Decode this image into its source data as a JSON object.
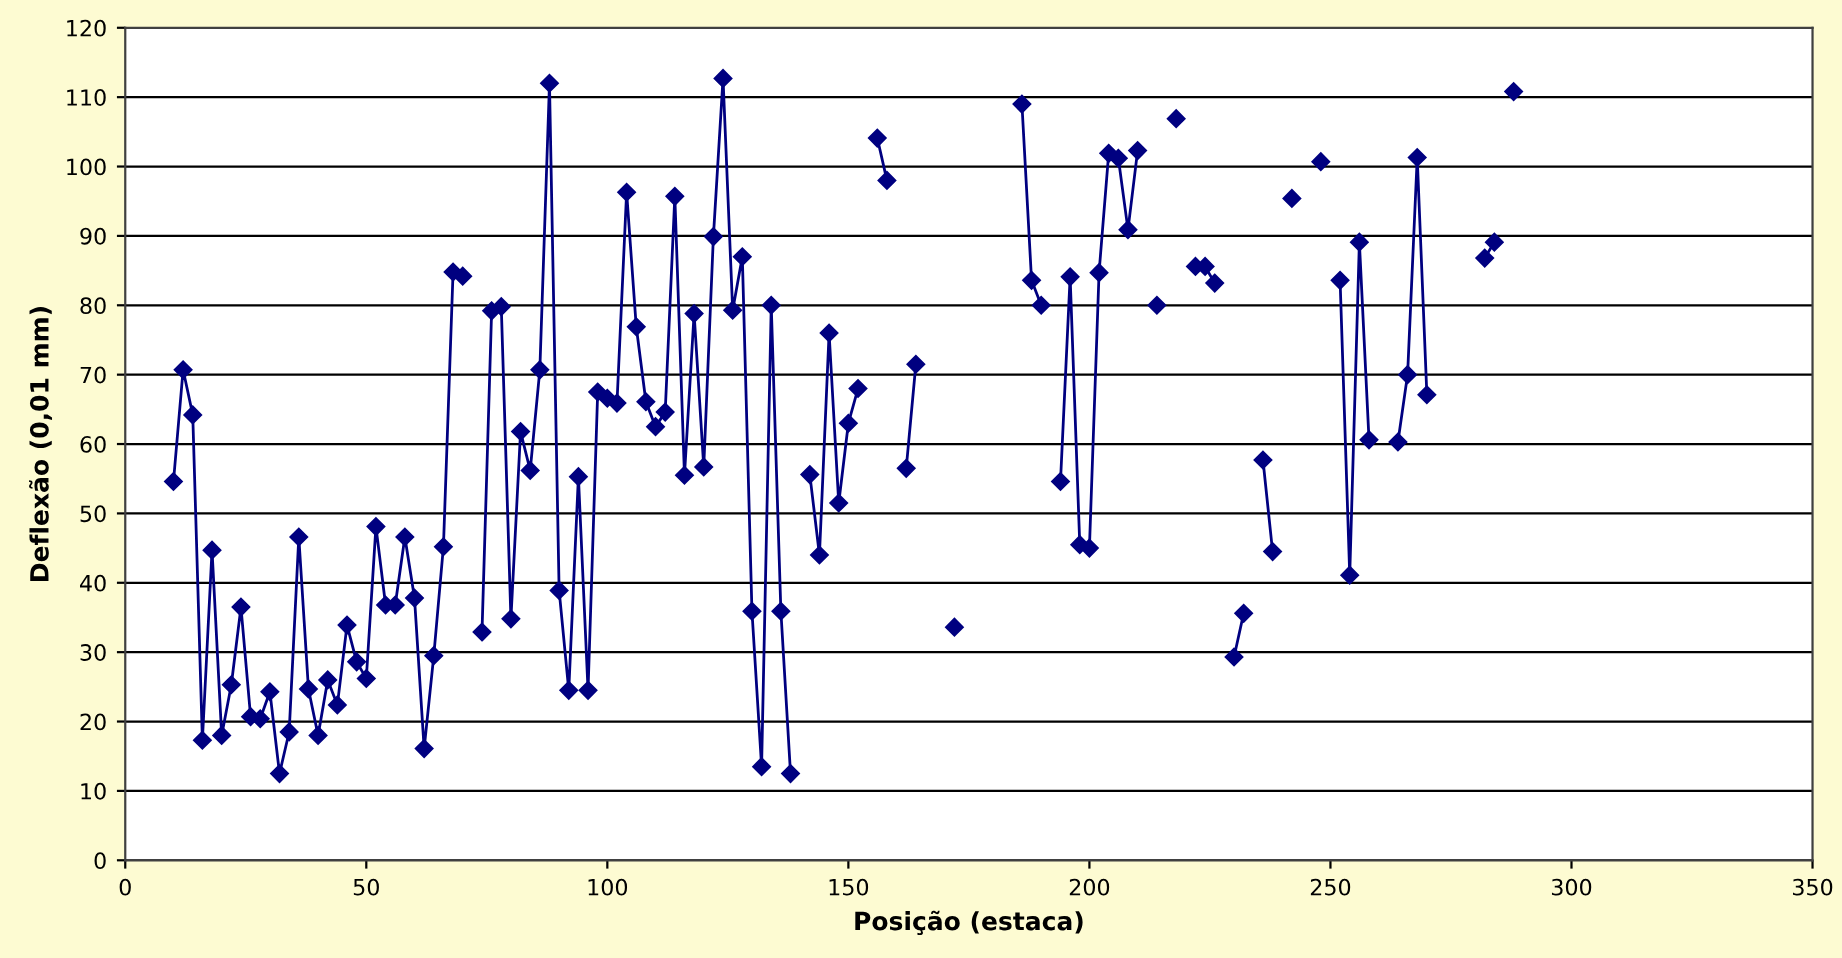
{
  "chart_data": {
    "type": "line",
    "xlabel": "Posição (estaca)",
    "ylabel": "Deflexão (0,01 mm)",
    "xlim": [
      0,
      350
    ],
    "xticks": [
      0,
      50,
      100,
      150,
      200,
      250,
      300,
      350
    ],
    "ylim": [
      0,
      120
    ],
    "yticks": [
      0,
      10,
      20,
      30,
      40,
      50,
      60,
      70,
      80,
      90,
      100,
      110,
      120
    ],
    "grid": "y",
    "marker": "diamond",
    "line_style": "solid",
    "series": [
      {
        "color": "#000080",
        "x": [
          10,
          12,
          14,
          16,
          18,
          20,
          22,
          24,
          26,
          28,
          30,
          32,
          34,
          36,
          38,
          40,
          42,
          44,
          46,
          48,
          50,
          52,
          54,
          56,
          58,
          60,
          62,
          64,
          66,
          68,
          70,
          72,
          74,
          76,
          78,
          80,
          82,
          84,
          86,
          88,
          90,
          92,
          94,
          96,
          98,
          100,
          102,
          104,
          106,
          108,
          110,
          112,
          114,
          116,
          118,
          120,
          122,
          124,
          126,
          128,
          130,
          132,
          134,
          136,
          138,
          140,
          142,
          144,
          146,
          148,
          150,
          152,
          154,
          156,
          158,
          160,
          162,
          164,
          166,
          168,
          170,
          172,
          174,
          176,
          178,
          180,
          182,
          184,
          186,
          188,
          190,
          192,
          194,
          196,
          198,
          200,
          202,
          204,
          206,
          208,
          210,
          212,
          214,
          216,
          218,
          220,
          222,
          224,
          226,
          228,
          230,
          232,
          234,
          236,
          238,
          240,
          242,
          244,
          246,
          248,
          250,
          252,
          254,
          256,
          258,
          260,
          262,
          264,
          266,
          268,
          270,
          272,
          274,
          276,
          278,
          280,
          282,
          284,
          286,
          288
        ],
        "values": [
          54.6,
          70.7,
          64.2,
          17.3,
          44.7,
          18.0,
          25.3,
          36.5,
          20.7,
          20.4,
          24.3,
          12.5,
          18.5,
          46.6,
          24.7,
          18.0,
          26.0,
          22.4,
          33.9,
          28.6,
          26.2,
          48.1,
          36.8,
          36.8,
          46.6,
          37.8,
          16.1,
          29.5,
          45.2,
          84.8,
          84.2,
          null,
          32.9,
          79.2,
          79.8,
          34.8,
          61.8,
          56.2,
          70.7,
          112,
          38.9,
          24.5,
          55.3,
          24.5,
          67.5,
          66.6,
          65.9,
          96.3,
          76.9,
          66.1,
          62.5,
          64.6,
          95.7,
          55.5,
          78.8,
          56.7,
          89.9,
          112.7,
          79.3,
          87,
          35.9,
          13.5,
          80,
          35.9,
          12.5,
          null,
          55.6,
          44,
          76,
          51.5,
          63,
          68,
          null,
          104.1,
          98,
          null,
          56.5,
          71.5,
          null,
          null,
          null,
          33.6,
          null,
          null,
          null,
          null,
          null,
          null,
          109,
          83.6,
          80,
          null,
          54.6,
          84.1,
          45.5,
          45,
          84.7,
          101.9,
          101.2,
          90.9,
          102.3,
          null,
          80,
          null,
          106.9,
          null,
          85.6,
          85.6,
          83.2,
          null,
          29.3,
          35.6,
          null,
          57.7,
          44.5,
          null,
          95.4,
          null,
          null,
          100.7,
          null,
          83.6,
          41.1,
          89.1,
          60.6,
          null,
          null,
          60.3,
          70,
          101.3,
          67.1,
          null,
          null,
          null,
          null,
          null,
          86.8,
          89.1,
          null,
          110.8
        ]
      }
    ]
  }
}
